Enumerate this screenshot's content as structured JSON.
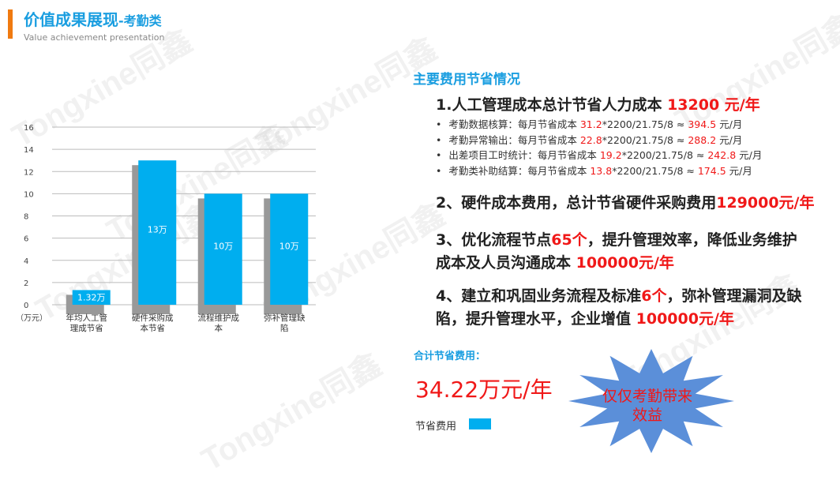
{
  "header": {
    "title": "价值成果展现",
    "title_suffix": "-考勤类",
    "subtitle": "Value achievement presentation",
    "accent_color": "#f07a10"
  },
  "watermark": "Tongxine同鑫",
  "chart_data": {
    "type": "bar",
    "categories": [
      "年均人工管理成节省",
      "硬件采购成本节省",
      "流程维护成本",
      "弥补管理缺陷"
    ],
    "values": [
      1.32,
      13,
      10,
      10
    ],
    "data_labels": [
      "1.32万",
      "13万",
      "10万",
      "10万"
    ],
    "ylabel": "（万元）",
    "ylim": [
      0,
      16
    ],
    "yticks": [
      0,
      2,
      4,
      6,
      8,
      10,
      12,
      14,
      16
    ],
    "grid": true,
    "bar_color": "#00aeef",
    "shadow_color": "#999999",
    "legend": {
      "label": "节省费用",
      "placement": "bottom-right"
    }
  },
  "right": {
    "section_title": "主要费用节省情况",
    "item1": {
      "text": "1.人工管理成本总计节省人力成本 ",
      "amount": "13200 元/年"
    },
    "bullets": [
      {
        "label": "考勤数据核算：每月节省成本 ",
        "a": "31.2",
        "formula": "*2200/21.75/8 ≈ ",
        "b": "394.5",
        "unit": " 元/月"
      },
      {
        "label": "考勤异常输出：每月节省成本 ",
        "a": "22.8",
        "formula": "*2200/21.75/8 ≈ ",
        "b": "288.2",
        "unit": " 元/月"
      },
      {
        "label": "出差项目工时统计：每月节省成本 ",
        "a": "19.2",
        "formula": "*2200/21.75/8 ≈ ",
        "b": "242.8",
        "unit": " 元/月"
      },
      {
        "label": "考勤类补助结算：每月节省成本 ",
        "a": "13.8",
        "formula": "*2200/21.75/8 ≈ ",
        "b": "174.5",
        "unit": " 元/月"
      }
    ],
    "item2": {
      "text": "2、硬件成本费用，总计节省硬件采购费用",
      "amount": "129000元/年"
    },
    "item3": {
      "text_a": "3、优化流程节点",
      "num": "65个",
      "text_b": "，提升管理效率，降低业务维护成本及人员沟通成本 ",
      "amount": "100000元/年"
    },
    "item4": {
      "text_a": "4、建立和巩固业务流程及标准",
      "num": "6个",
      "text_b": "，弥补管理漏洞及缺陷，提升管理水平，企业增值 ",
      "amount": "100000元/年"
    },
    "total_label": "合计节省费用：",
    "total_value": "34.22万元/年",
    "starburst_text": "仅仅考勤带来效益",
    "starburst_color": "#5b8fd9"
  }
}
